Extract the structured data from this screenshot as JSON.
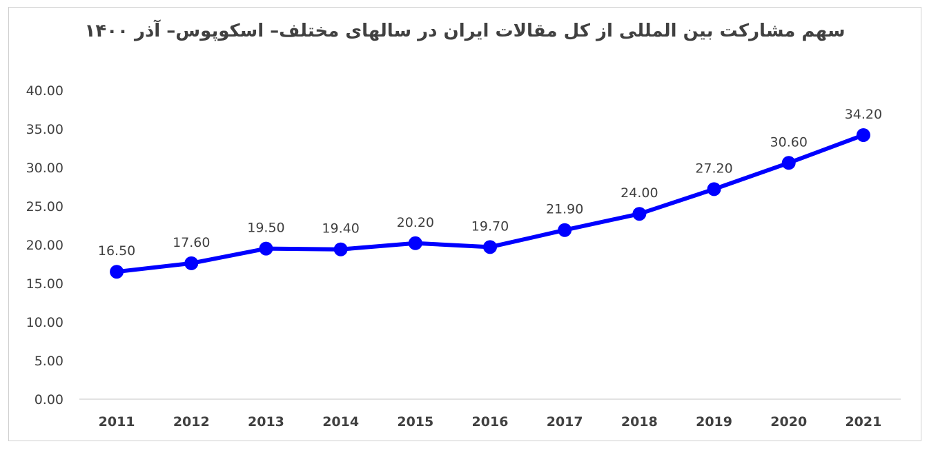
{
  "chart_data": {
    "type": "line",
    "title": "سهم مشارکت بین المللی از کل مقالات ایران در سالهای مختلف– اسکوپوس– آذر ۱۴۰۰",
    "xlabel": "",
    "ylabel": "",
    "categories": [
      "2011",
      "2012",
      "2013",
      "2014",
      "2015",
      "2016",
      "2017",
      "2018",
      "2019",
      "2020",
      "2021"
    ],
    "series": [
      {
        "values": [
          16.5,
          17.6,
          19.5,
          19.4,
          20.2,
          19.7,
          21.9,
          24.0,
          27.2,
          30.6,
          34.2
        ],
        "labels": [
          "16.50",
          "17.60",
          "19.50",
          "19.40",
          "20.20",
          "19.70",
          "21.90",
          "24.00",
          "27.20",
          "30.60",
          "34.20"
        ],
        "color": "#0000ff"
      }
    ],
    "yticks": [
      "0.00",
      "5.00",
      "10.00",
      "15.00",
      "20.00",
      "25.00",
      "30.00",
      "35.00",
      "40.00"
    ],
    "ylim": [
      0,
      40
    ],
    "grid": false,
    "legend": "none"
  }
}
